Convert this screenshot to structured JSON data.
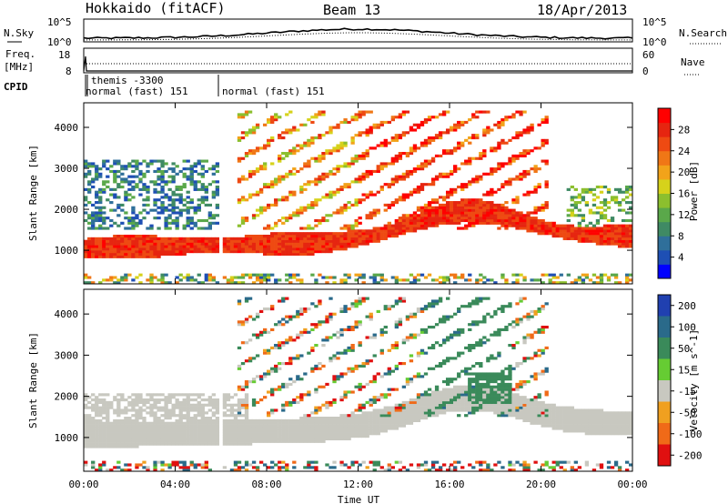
{
  "header": {
    "radar": "Hokkaido (fitACF)",
    "beam": "Beam 13",
    "date": "18/Apr/2013"
  },
  "status_panels": {
    "noise": {
      "left_label": "N.Sky",
      "right_label": "N.Search",
      "left_ticks": [
        "10^5",
        "10^0"
      ],
      "right_ticks": [
        "10^5",
        "10^0"
      ]
    },
    "freq": {
      "left_label_line1": "Freq.",
      "left_label_line2": "[MHz]",
      "right_label": "Nave",
      "left_ticks": [
        "18",
        "8"
      ],
      "right_ticks": [
        "60",
        "0"
      ]
    },
    "cpid": {
      "label": "CPID",
      "segments": [
        {
          "text": "themis -3300"
        },
        {
          "text": "normal (fast) 151"
        },
        {
          "text": "normal (fast) 151"
        }
      ]
    }
  },
  "chart_data": [
    {
      "type": "heatmap",
      "panel": "power",
      "title": "",
      "xlabel": "",
      "ylabel": "Slant Range [km]",
      "xlim": [
        "00:00",
        "24:00"
      ],
      "ylim": [
        180,
        4600
      ],
      "x_ticks": [
        "00:00",
        "04:00",
        "08:00",
        "12:00",
        "16:00",
        "20:00",
        "00:00"
      ],
      "y_ticks": [
        1000,
        2000,
        3000,
        4000
      ],
      "colorbar": {
        "label": "Power [dB]",
        "range": [
          0,
          32
        ],
        "ticks": [
          4,
          8,
          12,
          16,
          20,
          24,
          28
        ],
        "colors": [
          "#0000ff",
          "#1e4fb4",
          "#2f6f9a",
          "#3f8a64",
          "#5aa84a",
          "#8cbf2e",
          "#d6d21b",
          "#f2a31a",
          "#f07716",
          "#ee4a12",
          "#e62510",
          "#ff0000"
        ]
      },
      "features": [
        {
          "name": "near-range band",
          "range_km": [
            800,
            1300
          ],
          "power_db": 26
        },
        {
          "name": "F-region band",
          "range_km": [
            1300,
            1900
          ],
          "power_db": 24
        },
        {
          "name": "upper striations",
          "range_km": [
            2000,
            4500
          ],
          "power_db": 20
        },
        {
          "name": "early weak echoes",
          "range_km": [
            1500,
            3200
          ],
          "power_db": 6
        }
      ]
    },
    {
      "type": "heatmap",
      "panel": "velocity",
      "title": "",
      "xlabel": "Time UT",
      "ylabel": "Slant Range [km]",
      "xlim": [
        "00:00",
        "24:00"
      ],
      "ylim": [
        180,
        4600
      ],
      "x_ticks": [
        "00:00",
        "04:00",
        "08:00",
        "12:00",
        "16:00",
        "20:00",
        "00:00"
      ],
      "y_ticks": [
        1000,
        2000,
        3000,
        4000
      ],
      "colorbar": {
        "label": "Velocity [m s^-1]",
        "range": [
          -250,
          250
        ],
        "ticks": [
          200,
          100,
          50,
          15,
          -15,
          -50,
          -100,
          -200
        ],
        "colors": [
          "#2040b0",
          "#2a6a8a",
          "#3a8a5a",
          "#66cc33",
          "#c8c8c0",
          "#f0a020",
          "#f06a18",
          "#e01010"
        ]
      },
      "features": [
        {
          "name": "ground scatter band",
          "range_km": [
            800,
            2000
          ],
          "velocity_ms": 0
        },
        {
          "name": "positive velocity echoes",
          "range_km": [
            2000,
            3400
          ],
          "velocity_ms": 60
        }
      ]
    }
  ]
}
